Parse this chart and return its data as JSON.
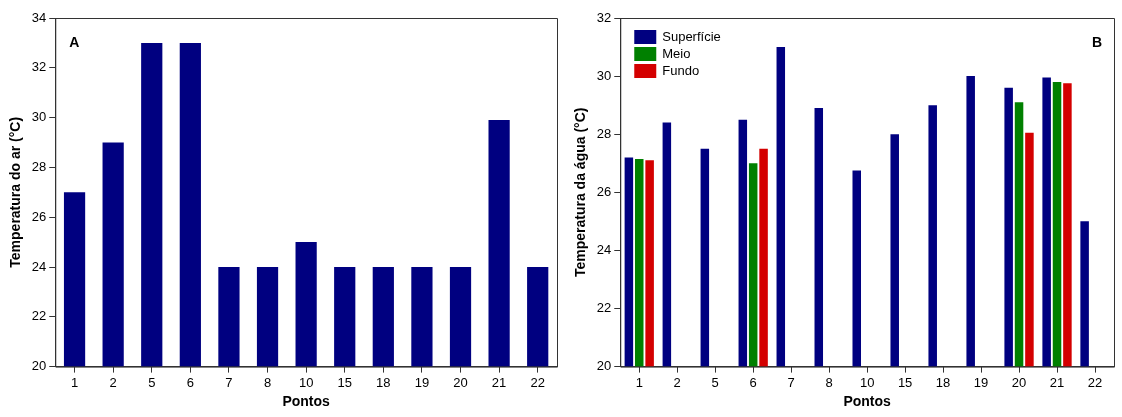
{
  "chart_data": [
    {
      "type": "bar",
      "annotations": [
        "A"
      ],
      "xlabel": "Pontos",
      "ylabel": "Temperatura do ar (°C)",
      "categories": [
        "1",
        "2",
        "5",
        "6",
        "7",
        "8",
        "10",
        "15",
        "18",
        "19",
        "20",
        "21",
        "22"
      ],
      "values": [
        27,
        29,
        33,
        33,
        24,
        24,
        25,
        24,
        24,
        24,
        24,
        29.9,
        24
      ],
      "color": "#000080",
      "ylim": [
        20,
        34
      ],
      "yticks": [
        20,
        22,
        24,
        26,
        28,
        30,
        32,
        34
      ],
      "grid": false,
      "legend": false
    },
    {
      "type": "bar",
      "annotations": [
        "B"
      ],
      "xlabel": "Pontos",
      "ylabel": "Temperatura da água (°C)",
      "categories": [
        "1",
        "2",
        "5",
        "6",
        "7",
        "8",
        "10",
        "15",
        "18",
        "19",
        "20",
        "21",
        "22"
      ],
      "series": [
        {
          "name": "Superfície",
          "color": "#000080",
          "values": [
            27.2,
            28.4,
            27.5,
            28.5,
            31,
            28.9,
            26.75,
            28,
            29,
            30,
            29.6,
            29.95,
            25
          ]
        },
        {
          "name": "Meio",
          "color": "#008000",
          "values": [
            27.15,
            null,
            null,
            27,
            null,
            null,
            null,
            null,
            null,
            null,
            29.1,
            29.8,
            null
          ]
        },
        {
          "name": "Fundo",
          "color": "#d40000",
          "values": [
            27.1,
            null,
            null,
            27.5,
            null,
            null,
            null,
            null,
            null,
            null,
            28.05,
            29.75,
            null
          ]
        }
      ],
      "ylim": [
        20,
        32
      ],
      "yticks": [
        20,
        22,
        24,
        26,
        28,
        30,
        32
      ],
      "grid": false,
      "legend": "top left"
    }
  ]
}
